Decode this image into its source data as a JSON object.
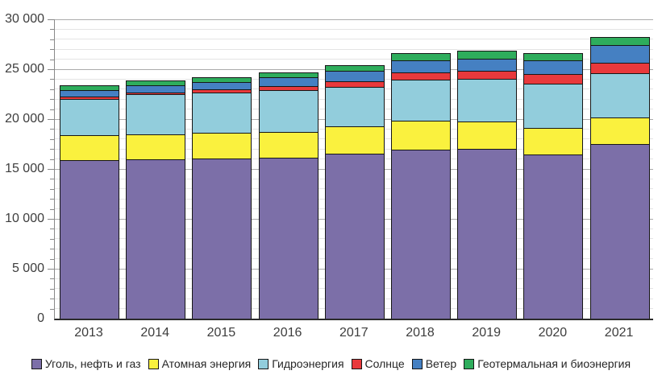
{
  "chart_data": {
    "type": "bar",
    "stacked": true,
    "title": "",
    "unit_hint": "TWh-scale values read from axis",
    "categories": [
      "2013",
      "2014",
      "2015",
      "2016",
      "2017",
      "2018",
      "2019",
      "2020",
      "2021"
    ],
    "series": [
      {
        "key": "coal-oil-gas",
        "name": "Уголь, нефть и газ",
        "color": "#7c6fa8",
        "values": [
          15900,
          16000,
          16070,
          16120,
          16500,
          16970,
          16990,
          16450,
          17500
        ]
      },
      {
        "key": "nuclear",
        "name": "Атомная энергия",
        "color": "#faf13e",
        "values": [
          2500,
          2480,
          2520,
          2600,
          2770,
          2850,
          2740,
          2660,
          2690
        ]
      },
      {
        "key": "hydro",
        "name": "Гидроэнергия",
        "color": "#92cddc",
        "values": [
          3650,
          3990,
          4070,
          4150,
          3960,
          4140,
          4280,
          4450,
          4370
        ]
      },
      {
        "key": "solar",
        "name": "Солнце",
        "color": "#e8393c",
        "values": [
          220,
          220,
          300,
          410,
          540,
          680,
          790,
          940,
          1110
        ]
      },
      {
        "key": "wind",
        "name": "Ветер",
        "color": "#4580c2",
        "values": [
          620,
          680,
          760,
          950,
          1060,
          1220,
          1280,
          1360,
          1760
        ]
      },
      {
        "key": "geothermal-bio",
        "name": "Геотермальная и биоэнергия",
        "color": "#2ead5c",
        "values": [
          470,
          490,
          490,
          470,
          570,
          730,
          810,
          730,
          800
        ]
      }
    ],
    "totals": [
      23360,
      23860,
      24210,
      24700,
      25400,
      26590,
      26890,
      26590,
      28230
    ],
    "ylim": [
      0,
      30000
    ],
    "y_major_step": 5000,
    "y_minor_step": 1000,
    "y_tick_labels": [
      "0",
      "5 000",
      "10 000",
      "15 000",
      "20 000",
      "25 000",
      "30 000"
    ],
    "grid": {
      "horizontal_major": true,
      "horizontal_minor": true,
      "vertical": false
    },
    "legend_position": "bottom-center"
  }
}
